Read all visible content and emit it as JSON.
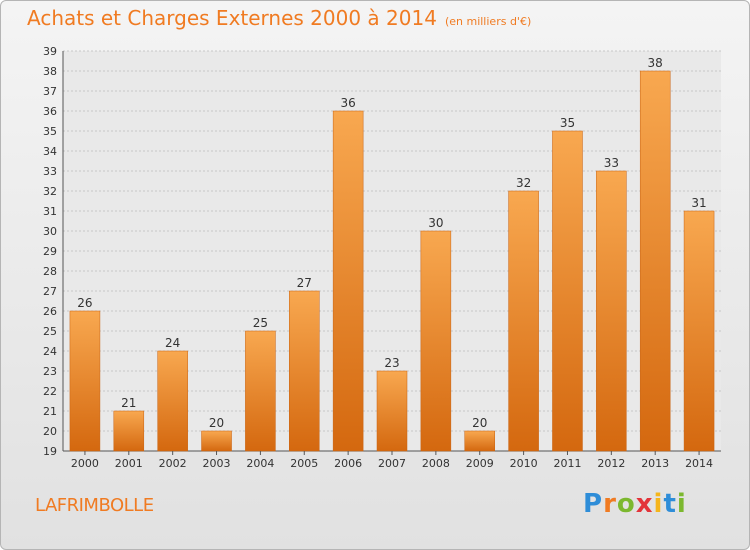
{
  "chart_data": {
    "type": "bar",
    "title": "Achats et Charges Externes 2000 à 2014",
    "unit_label": "(en milliers d'€)",
    "categories": [
      "2000",
      "2001",
      "2002",
      "2003",
      "2004",
      "2005",
      "2006",
      "2007",
      "2008",
      "2009",
      "2010",
      "2011",
      "2012",
      "2013",
      "2014"
    ],
    "values": [
      26,
      21,
      24,
      20,
      25,
      27,
      36,
      23,
      30,
      20,
      32,
      35,
      33,
      38,
      31
    ],
    "ylim": [
      19,
      39
    ],
    "yticks": [
      19,
      20,
      21,
      22,
      23,
      24,
      25,
      26,
      27,
      28,
      29,
      30,
      31,
      32,
      33,
      34,
      35,
      36,
      37,
      38,
      39
    ],
    "grid": true,
    "bar_color": "#f07b22",
    "xlabel": "",
    "ylabel": ""
  },
  "commune": "LAFRIMBOLLE",
  "logo": {
    "letters": [
      "P",
      "r",
      "o",
      "x",
      "i",
      "t",
      "i"
    ],
    "colors": [
      "#2e8dd8",
      "#f07b22",
      "#7cb82f",
      "#e3343a",
      "#f5b51b",
      "#2e8dd8",
      "#7cb82f"
    ]
  }
}
